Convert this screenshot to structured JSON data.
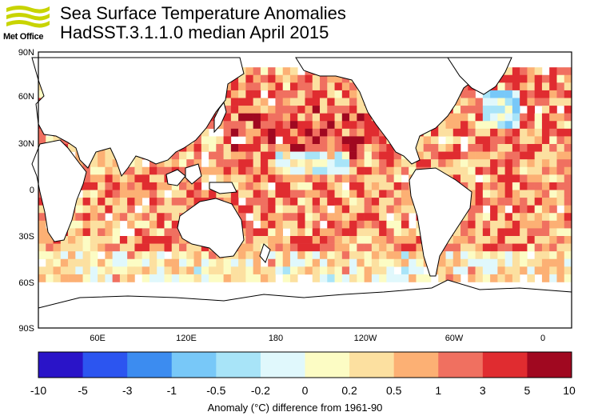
{
  "header": {
    "title": "Sea Surface Temperature Anomalies",
    "subtitle": "HadSST.3.1.1.0 median April 2015",
    "logo_text": "Met Office"
  },
  "map": {
    "lat_ticks": [
      "90N",
      "60N",
      "30N",
      "0",
      "30S",
      "60S",
      "90S"
    ],
    "lon_ticks": [
      "60E",
      "120E",
      "180",
      "120W",
      "60W",
      "0"
    ],
    "lon_start_deg": 20,
    "lon_end_deg": 380,
    "grid_deg": 5,
    "land_color": "#ffffff",
    "outline_color": "#000000"
  },
  "colorbar": {
    "tick_labels": [
      "-10",
      "-5",
      "-3",
      "-1",
      "-0.5",
      "-0.2",
      "0",
      "0.2",
      "0.5",
      "1",
      "3",
      "5",
      "10"
    ],
    "colors": [
      "#2a14c8",
      "#2c55f0",
      "#3c8cf0",
      "#78c8f8",
      "#a8e4f8",
      "#e0f8fc",
      "#fcfcc4",
      "#fce0a0",
      "#fcb074",
      "#f07060",
      "#e02c30",
      "#a00820"
    ],
    "label": "Anomaly (°C) difference from 1961-90"
  }
}
